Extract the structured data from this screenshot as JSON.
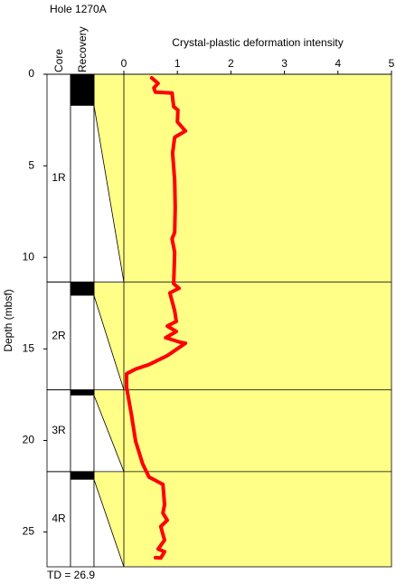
{
  "chart_data": {
    "type": "line",
    "title": "Hole 1270A",
    "x_label": "Crystal-plastic deformation intensity",
    "y_label": "Depth (mbsf)",
    "core_label": "Core",
    "recovery_label": "Recovery",
    "td_label": "TD = 26.9",
    "xlim": [
      0,
      5
    ],
    "xticks": [
      0,
      1,
      2,
      3,
      4,
      5
    ],
    "ylim": [
      0,
      26.9
    ],
    "yticks": [
      0,
      5,
      10,
      15,
      20,
      25
    ],
    "background_color": "#ffff88",
    "cores": [
      {
        "label": "1R",
        "top": 0,
        "bottom": 11.35,
        "recovery": 1.72
      },
      {
        "label": "2R",
        "top": 11.35,
        "bottom": 17.24,
        "recovery": 0.74
      },
      {
        "label": "3R",
        "top": 17.24,
        "bottom": 21.7,
        "recovery": 0.3
      },
      {
        "label": "4R",
        "top": 21.7,
        "bottom": 26.9,
        "recovery": 0.44
      }
    ],
    "depth": [
      0.2,
      0.5,
      0.74,
      0.98,
      1.03,
      1.77,
      1.96,
      2.6,
      3.1,
      3.44,
      4.3,
      5.8,
      7.27,
      8.64,
      8.99,
      9.73,
      11.44,
      11.69,
      11.94,
      12.92,
      13.5,
      13.75,
      14.05,
      14.39,
      14.64,
      14.69,
      15.37,
      15.86,
      16.1,
      16.36,
      17.1,
      18.57,
      20.04,
      21.27,
      22.0,
      22.4,
      23.5,
      23.97,
      24.36,
      24.7,
      25.44,
      25.93,
      26.08,
      26.42,
      26.4
    ],
    "series": [
      {
        "color": "#ff0000",
        "values": [
          0.52,
          0.64,
          0.56,
          0.59,
          0.9,
          0.93,
          1.01,
          1.0,
          1.15,
          0.95,
          0.91,
          0.95,
          0.96,
          0.95,
          0.9,
          0.95,
          0.93,
          1.03,
          0.86,
          0.95,
          0.98,
          0.81,
          0.98,
          0.78,
          1.06,
          1.15,
          0.81,
          0.47,
          0.22,
          0.05,
          0.05,
          0.14,
          0.22,
          0.35,
          0.47,
          0.73,
          0.76,
          0.73,
          0.81,
          0.69,
          0.76,
          0.64,
          0.76,
          0.69,
          0.59
        ]
      }
    ]
  }
}
